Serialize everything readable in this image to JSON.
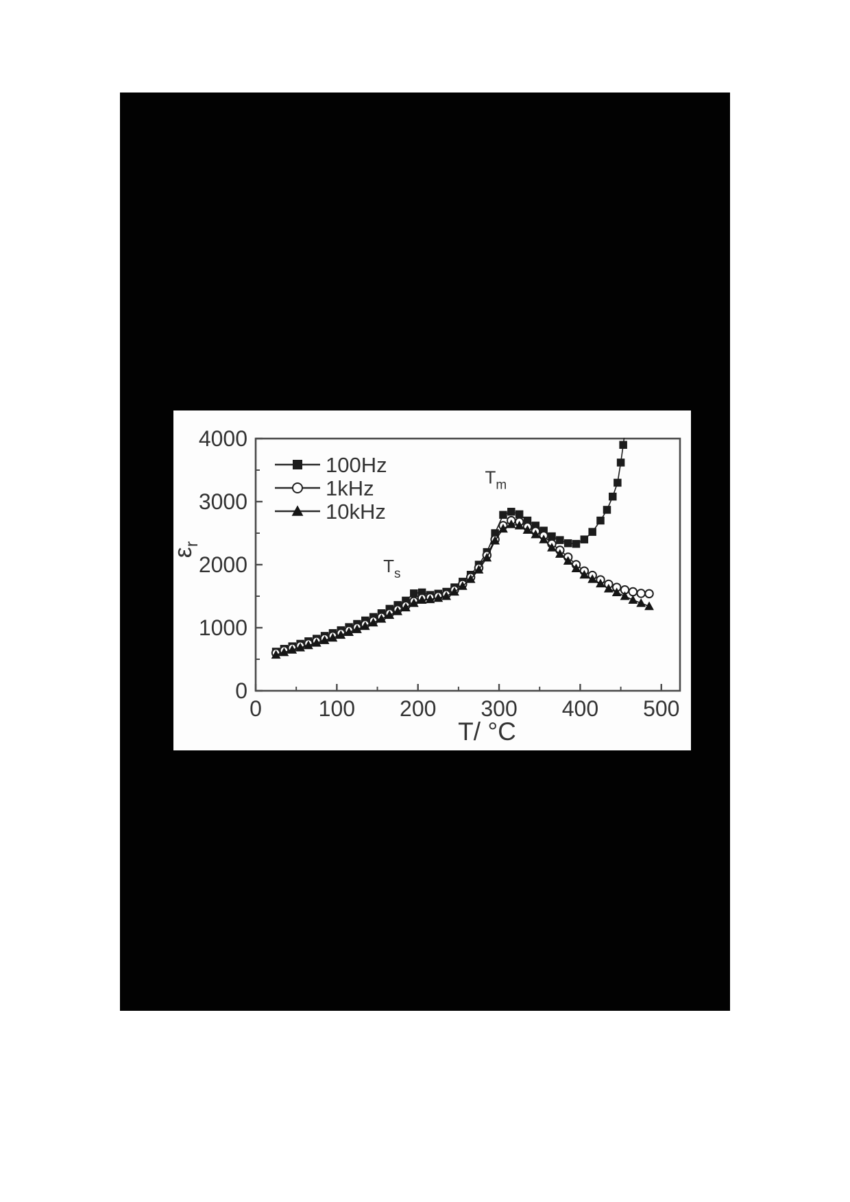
{
  "page": {
    "background_color": "#ffffff",
    "slide_background_color": "#020202",
    "panel_background_color": "#fdfdfd"
  },
  "chart_data": {
    "type": "line",
    "title": "",
    "xlabel": "T/ °C",
    "ylabel": {
      "symbol": "ε",
      "subscript": "r"
    },
    "xlim": [
      0,
      523
    ],
    "ylim": [
      0,
      4000
    ],
    "x_ticks_major": [
      0,
      100,
      200,
      300,
      400,
      500
    ],
    "x_ticks_minor": [
      50,
      150,
      250,
      350,
      450
    ],
    "y_ticks_major": [
      0,
      1000,
      2000,
      3000,
      4000
    ],
    "y_ticks_minor": [
      500,
      1500,
      2500,
      3500
    ],
    "grid": "off",
    "legend_position": "top-left",
    "axis_color": "#4a4a4a",
    "text_color": "#333333",
    "annotations": [
      {
        "text": "T",
        "subscript": "s",
        "x": 168,
        "y": 1880
      },
      {
        "text": "T",
        "subscript": "m",
        "x": 296,
        "y": 3290
      }
    ],
    "series": [
      {
        "name": "100Hz",
        "marker": "filled-square",
        "color": "#1c1c1c",
        "x": [
          25,
          35,
          45,
          55,
          65,
          75,
          85,
          95,
          105,
          115,
          125,
          135,
          145,
          155,
          165,
          175,
          185,
          195,
          205,
          215,
          225,
          235,
          245,
          255,
          265,
          275,
          285,
          295,
          305,
          315,
          325,
          335,
          345,
          355,
          365,
          375,
          385,
          395,
          405,
          415,
          425,
          433,
          440,
          446,
          450,
          453,
          456
        ],
        "y": [
          620,
          665,
          705,
          745,
          785,
          825,
          870,
          915,
          960,
          1010,
          1060,
          1115,
          1170,
          1230,
          1300,
          1360,
          1430,
          1545,
          1560,
          1520,
          1540,
          1570,
          1640,
          1730,
          1840,
          2000,
          2200,
          2500,
          2790,
          2840,
          2800,
          2700,
          2620,
          2540,
          2450,
          2390,
          2340,
          2330,
          2400,
          2520,
          2700,
          2870,
          3080,
          3300,
          3620,
          3900,
          4200
        ]
      },
      {
        "name": "1kHz",
        "marker": "open-circle",
        "color": "#1f1f1f",
        "x": [
          25,
          35,
          45,
          55,
          65,
          75,
          85,
          95,
          105,
          115,
          125,
          135,
          145,
          155,
          165,
          175,
          185,
          195,
          205,
          215,
          225,
          235,
          245,
          255,
          265,
          275,
          285,
          295,
          305,
          315,
          325,
          335,
          345,
          355,
          365,
          375,
          385,
          395,
          405,
          415,
          425,
          435,
          445,
          455,
          465,
          475,
          485
        ],
        "y": [
          600,
          640,
          680,
          715,
          750,
          790,
          830,
          870,
          915,
          960,
          1005,
          1055,
          1110,
          1170,
          1230,
          1290,
          1350,
          1420,
          1470,
          1480,
          1500,
          1530,
          1600,
          1690,
          1800,
          1950,
          2150,
          2400,
          2620,
          2700,
          2680,
          2600,
          2530,
          2460,
          2330,
          2230,
          2120,
          2000,
          1900,
          1830,
          1760,
          1690,
          1640,
          1600,
          1570,
          1545,
          1540
        ]
      },
      {
        "name": "10kHz",
        "marker": "filled-triangle",
        "color": "#151515",
        "x": [
          25,
          35,
          45,
          55,
          65,
          75,
          85,
          95,
          105,
          115,
          125,
          135,
          145,
          155,
          165,
          175,
          185,
          195,
          205,
          215,
          225,
          235,
          245,
          255,
          265,
          275,
          285,
          295,
          305,
          315,
          325,
          335,
          345,
          355,
          365,
          375,
          385,
          395,
          405,
          415,
          425,
          435,
          445,
          455,
          465,
          475,
          485
        ],
        "y": [
          570,
          610,
          650,
          685,
          720,
          760,
          800,
          840,
          885,
          930,
          975,
          1025,
          1080,
          1140,
          1200,
          1260,
          1320,
          1390,
          1440,
          1450,
          1470,
          1500,
          1570,
          1660,
          1770,
          1920,
          2110,
          2380,
          2570,
          2640,
          2620,
          2550,
          2480,
          2400,
          2270,
          2170,
          2060,
          1940,
          1840,
          1770,
          1700,
          1620,
          1560,
          1500,
          1440,
          1390,
          1340
        ]
      }
    ]
  }
}
